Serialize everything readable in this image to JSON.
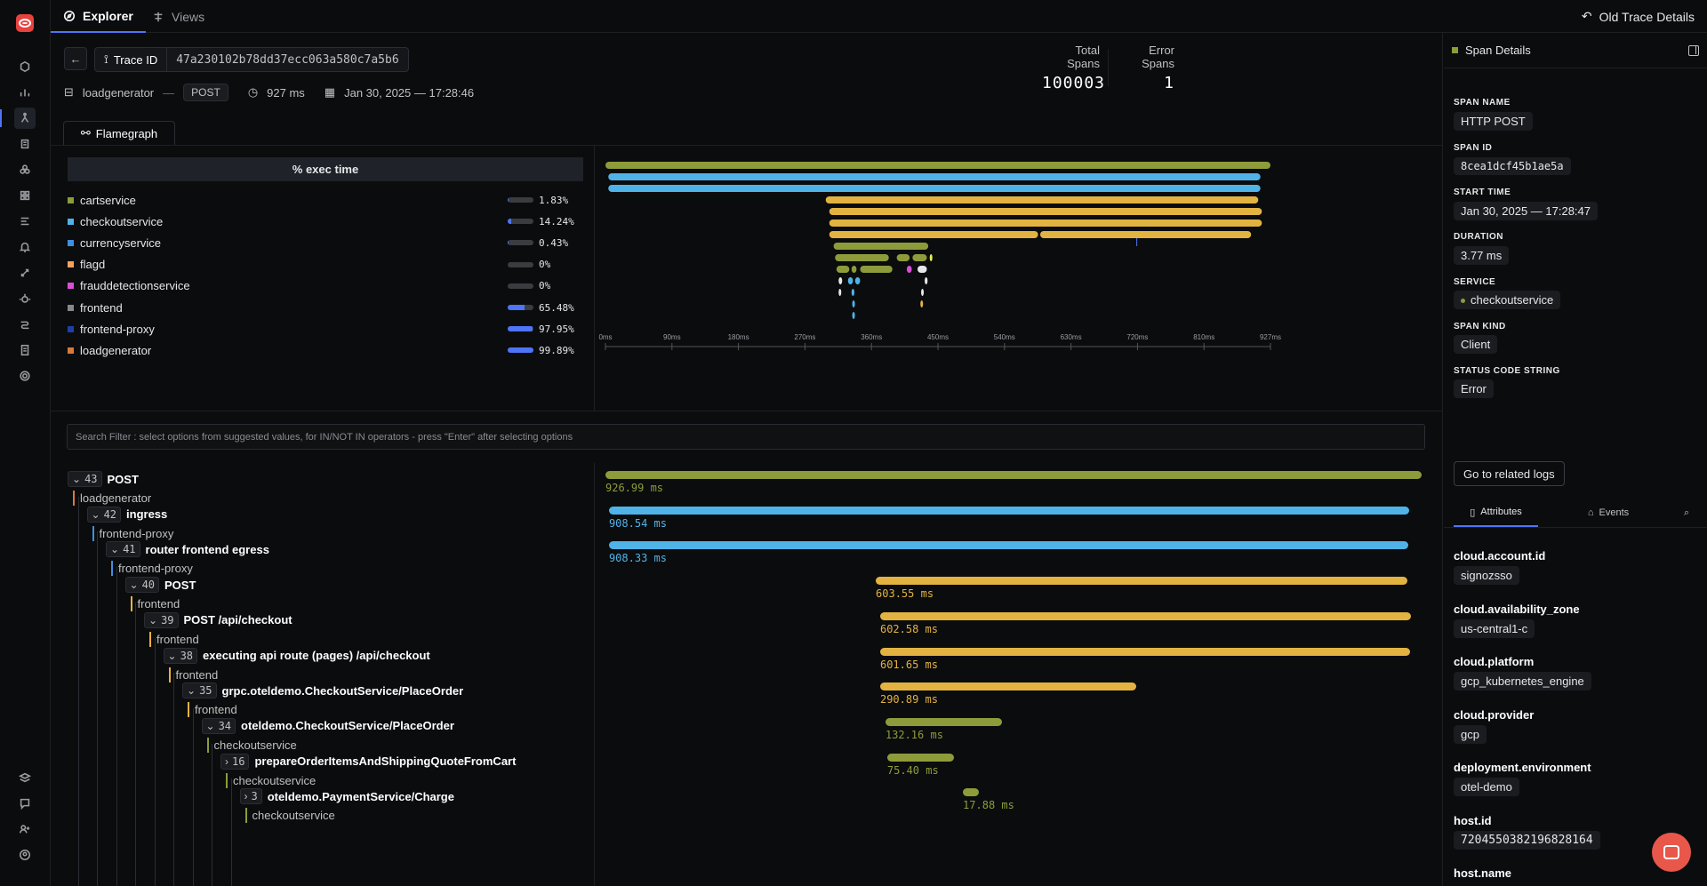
{
  "topbar": {
    "tab_explorer": "Explorer",
    "tab_views": "Views",
    "old_trace_details": "Old Trace Details"
  },
  "trace": {
    "trace_id_label": "Trace ID",
    "trace_id": "47a230102b78dd37ecc063a580c7a5b6",
    "service": "loadgenerator",
    "separator": "—",
    "method": "POST",
    "duration": "927 ms",
    "timestamp": "Jan 30, 2025 — 17:28:46",
    "total_spans_label": "Total Spans",
    "total_spans": "100003",
    "error_spans_label": "Error Spans",
    "error_spans": "1",
    "flamegraph_tab": "Flamegraph"
  },
  "legend": {
    "header": "% exec time",
    "items": [
      {
        "name": "cartservice",
        "pct": "1.83%",
        "fill": 0.0183,
        "color": "#8e9b3a"
      },
      {
        "name": "checkoutservice",
        "pct": "14.24%",
        "fill": 0.1424,
        "color": "#4fb3e8"
      },
      {
        "name": "currencyservice",
        "pct": "0.43%",
        "fill": 0.0043,
        "color": "#3f8fe0"
      },
      {
        "name": "flagd",
        "pct": "0%",
        "fill": 0,
        "color": "#f0a35a"
      },
      {
        "name": "frauddetectionservice",
        "pct": "0%",
        "fill": 0,
        "color": "#d94fd9"
      },
      {
        "name": "frontend",
        "pct": "65.48%",
        "fill": 0.6548,
        "color": "#888888"
      },
      {
        "name": "frontend-proxy",
        "pct": "97.95%",
        "fill": 0.9795,
        "color": "#1f3fa8"
      },
      {
        "name": "loadgenerator",
        "pct": "99.89%",
        "fill": 0.9989,
        "color": "#d97a3a"
      }
    ]
  },
  "flame_axis": [
    "0ms",
    "90ms",
    "180ms",
    "270ms",
    "360ms",
    "450ms",
    "540ms",
    "630ms",
    "720ms",
    "810ms",
    "927ms"
  ],
  "search": {
    "placeholder": "Search Filter : select options from suggested values, for IN/NOT IN operators - press \"Enter\" after selecting options"
  },
  "tree": [
    {
      "count": "43",
      "name": "POST",
      "service": "loadgenerator",
      "color": "#d97a3a",
      "expanded": true
    },
    {
      "count": "42",
      "name": "ingress",
      "service": "frontend-proxy",
      "color": "#3f8fe0",
      "expanded": true
    },
    {
      "count": "41",
      "name": "router frontend egress",
      "service": "frontend-proxy",
      "color": "#3f8fe0",
      "expanded": true
    },
    {
      "count": "40",
      "name": "POST",
      "service": "frontend",
      "color": "#e3b341",
      "expanded": true
    },
    {
      "count": "39",
      "name": "POST /api/checkout",
      "service": "frontend",
      "color": "#e3b341",
      "expanded": true
    },
    {
      "count": "38",
      "name": "executing api route (pages) /api/checkout",
      "service": "frontend",
      "color": "#e3b341",
      "expanded": true
    },
    {
      "count": "35",
      "name": "grpc.oteldemo.CheckoutService/PlaceOrder",
      "service": "frontend",
      "color": "#e3b341",
      "expanded": true
    },
    {
      "count": "34",
      "name": "oteldemo.CheckoutService/PlaceOrder",
      "service": "checkoutservice",
      "color": "#8e9b3a",
      "expanded": true
    },
    {
      "count": "16",
      "name": "prepareOrderItemsAndShippingQuoteFromCart",
      "service": "checkoutservice",
      "color": "#8e9b3a",
      "expanded": false
    },
    {
      "count": "3",
      "name": "oteldemo.PaymentService/Charge",
      "service": "checkoutservice",
      "color": "#8e9b3a",
      "expanded": false
    }
  ],
  "waterfall": [
    {
      "label": "926.99 ms",
      "start_ms": 0,
      "dur_ms": 926.99,
      "color": "#8e9b3a"
    },
    {
      "label": "908.54 ms",
      "start_ms": 4,
      "dur_ms": 908.54,
      "color": "#4fb3e8"
    },
    {
      "label": "908.33 ms",
      "start_ms": 4,
      "dur_ms": 908.33,
      "color": "#4fb3e8"
    },
    {
      "label": "603.55 ms",
      "start_ms": 307,
      "dur_ms": 603.55,
      "color": "#e3b341"
    },
    {
      "label": "602.58 ms",
      "start_ms": 312,
      "dur_ms": 602.58,
      "color": "#e3b341"
    },
    {
      "label": "601.65 ms",
      "start_ms": 312,
      "dur_ms": 601.65,
      "color": "#e3b341"
    },
    {
      "label": "290.89 ms",
      "start_ms": 312,
      "dur_ms": 290.89,
      "color": "#e3b341"
    },
    {
      "label": "132.16 ms",
      "start_ms": 318,
      "dur_ms": 132.16,
      "color": "#8e9b3a"
    },
    {
      "label": "75.40 ms",
      "start_ms": 320,
      "dur_ms": 75.4,
      "color": "#8e9b3a"
    },
    {
      "label": "17.88 ms",
      "start_ms": 406,
      "dur_ms": 17.88,
      "color": "#8e9b3a"
    }
  ],
  "details": {
    "header": "Span Details",
    "span_name_label": "SPAN NAME",
    "span_name": "HTTP POST",
    "span_id_label": "SPAN ID",
    "span_id": "8cea1dcf45b1ae5a",
    "start_time_label": "START TIME",
    "start_time": "Jan 30, 2025 — 17:28:47",
    "duration_label": "DURATION",
    "duration": "3.77 ms",
    "service_label": "SERVICE",
    "service": "checkoutservice",
    "span_kind_label": "SPAN KIND",
    "span_kind": "Client",
    "status_label": "STATUS CODE STRING",
    "status": "Error",
    "related_logs": "Go to related logs",
    "tab_attributes": "Attributes",
    "tab_events": "Events",
    "attributes": [
      {
        "key": "cloud.account.id",
        "value": "signozsso"
      },
      {
        "key": "cloud.availability_zone",
        "value": "us-central1-c"
      },
      {
        "key": "cloud.platform",
        "value": "gcp_kubernetes_engine"
      },
      {
        "key": "cloud.provider",
        "value": "gcp"
      },
      {
        "key": "deployment.environment",
        "value": "otel-demo"
      },
      {
        "key": "host.id",
        "value": "7204550382196828164"
      },
      {
        "key": "host.name",
        "value": ""
      }
    ]
  }
}
